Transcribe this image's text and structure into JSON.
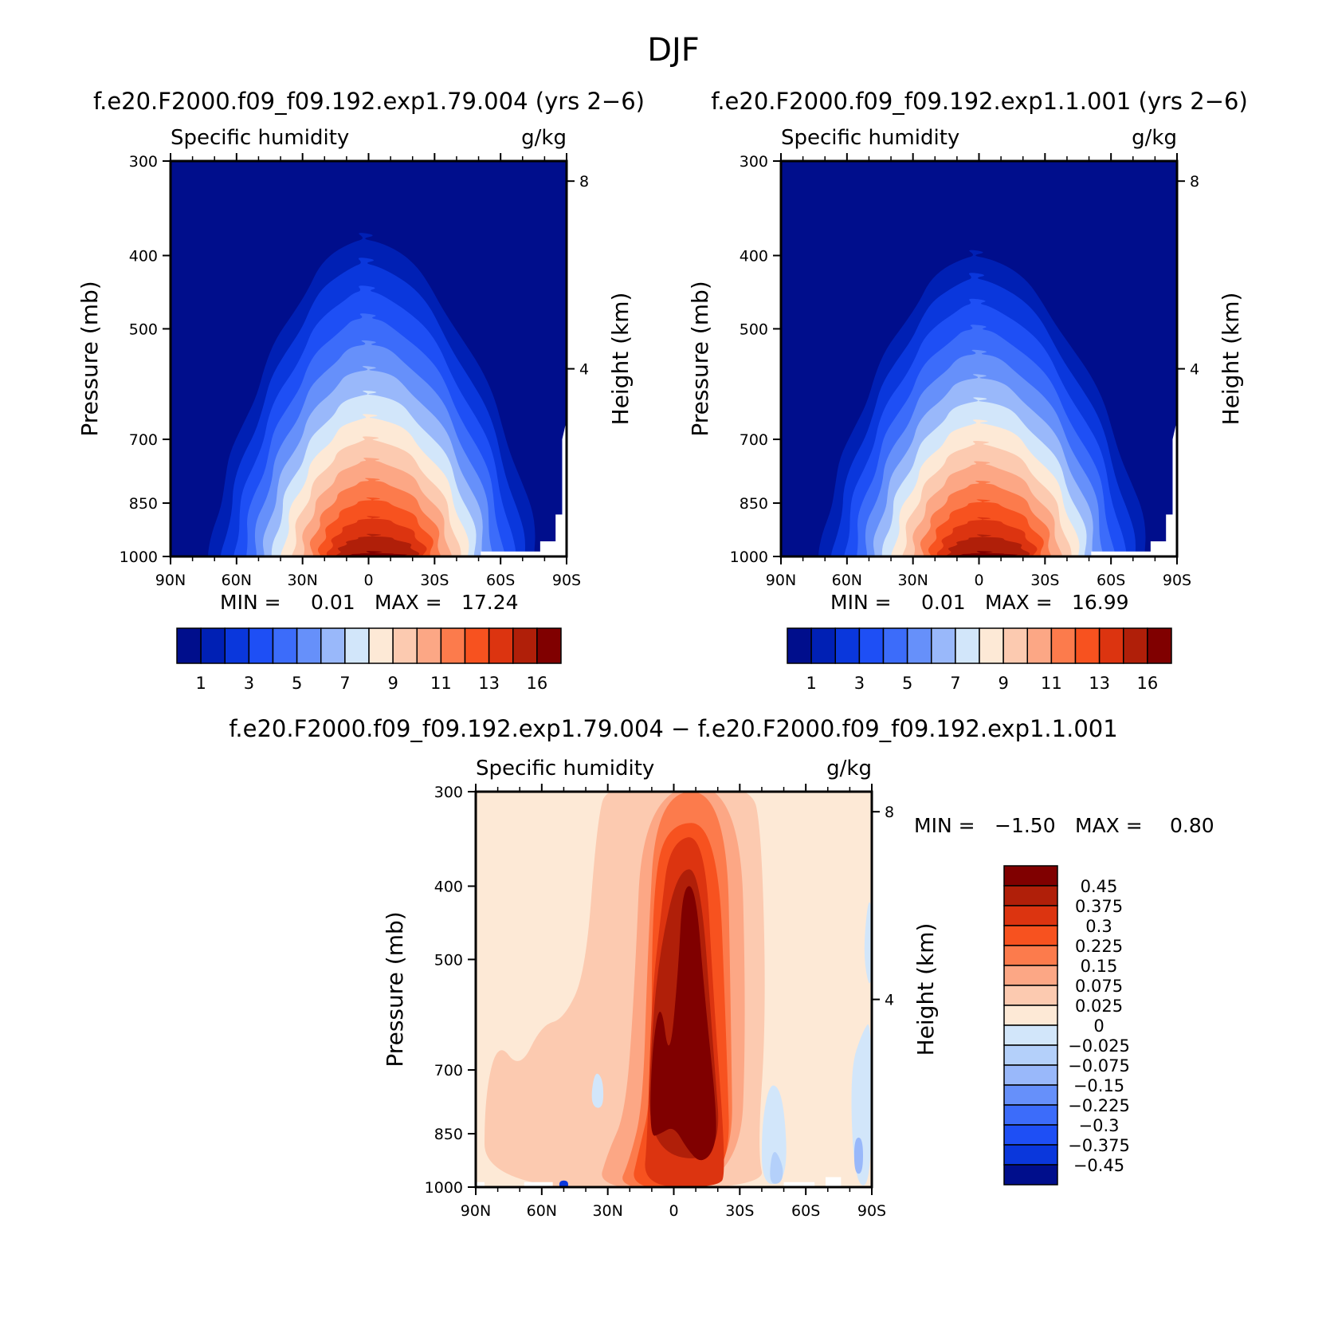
{
  "figure": {
    "title": "DJF"
  },
  "chart_data": [
    {
      "type": "heatmap",
      "panel": "top-left",
      "title": "f.e20.F2000.f09_f09.192.exp1.79.004 (yrs 2−6)",
      "left_subtitle": "Specific humidity",
      "right_subtitle": "g/kg",
      "xlabel": "",
      "ylabel": "Pressure (mb)",
      "y2label": "Height (km)",
      "x_ticks": [
        "90N",
        "60N",
        "30N",
        "0",
        "30S",
        "60S",
        "90S"
      ],
      "x_values": [
        90,
        60,
        30,
        0,
        -30,
        -60,
        -90
      ],
      "y_ticks": [
        "300",
        "400",
        "500",
        "700",
        "850",
        "1000"
      ],
      "y_values": [
        300,
        400,
        500,
        700,
        850,
        1000
      ],
      "y_scale": "log",
      "y2_ticks": [
        "8",
        "4"
      ],
      "y2_values": [
        8,
        4
      ],
      "min_label": "MIN =",
      "min_value": "0.01",
      "max_label": "MAX =",
      "max_value": "17.24",
      "peak_level_mb": 380,
      "colorbar": {
        "orientation": "horizontal",
        "tick_labels": [
          "1",
          "3",
          "5",
          "7",
          "9",
          "11",
          "13",
          "16"
        ],
        "colors": [
          "#000e8c",
          "#0020b4",
          "#0a37dc",
          "#1e4ff5",
          "#3c6cfa",
          "#6690fa",
          "#99b8fa",
          "#d2e6fa",
          "#fde9d6",
          "#fccab0",
          "#fca785",
          "#fc7b4c",
          "#f7521f",
          "#dc3410",
          "#b01f09",
          "#800000"
        ]
      }
    },
    {
      "type": "heatmap",
      "panel": "top-right",
      "title": "f.e20.F2000.f09_f09.192.exp1.1.001 (yrs 2−6)",
      "left_subtitle": "Specific humidity",
      "right_subtitle": "g/kg",
      "xlabel": "",
      "ylabel": "Pressure (mb)",
      "y2label": "Height (km)",
      "x_ticks": [
        "90N",
        "60N",
        "30N",
        "0",
        "30S",
        "60S",
        "90S"
      ],
      "x_values": [
        90,
        60,
        30,
        0,
        -30,
        -60,
        -90
      ],
      "y_ticks": [
        "300",
        "400",
        "500",
        "700",
        "850",
        "1000"
      ],
      "y_values": [
        300,
        400,
        500,
        700,
        850,
        1000
      ],
      "y_scale": "log",
      "y2_ticks": [
        "8",
        "4"
      ],
      "y2_values": [
        8,
        4
      ],
      "min_label": "MIN =",
      "min_value": "0.01",
      "max_label": "MAX =",
      "max_value": "16.99",
      "peak_level_mb": 400,
      "colorbar": {
        "orientation": "horizontal",
        "tick_labels": [
          "1",
          "3",
          "5",
          "7",
          "9",
          "11",
          "13",
          "16"
        ],
        "colors": [
          "#000e8c",
          "#0020b4",
          "#0a37dc",
          "#1e4ff5",
          "#3c6cfa",
          "#6690fa",
          "#99b8fa",
          "#d2e6fa",
          "#fde9d6",
          "#fccab0",
          "#fca785",
          "#fc7b4c",
          "#f7521f",
          "#dc3410",
          "#b01f09",
          "#800000"
        ]
      }
    },
    {
      "type": "heatmap",
      "panel": "bottom",
      "title": "f.e20.F2000.f09_f09.192.exp1.79.004 − f.e20.F2000.f09_f09.192.exp1.1.001",
      "left_subtitle": "Specific humidity",
      "right_subtitle": "g/kg",
      "xlabel": "",
      "ylabel": "Pressure (mb)",
      "y2label": "Height (km)",
      "x_ticks": [
        "90N",
        "60N",
        "30N",
        "0",
        "30S",
        "60S",
        "90S"
      ],
      "x_values": [
        90,
        60,
        30,
        0,
        -30,
        -60,
        -90
      ],
      "y_ticks": [
        "300",
        "400",
        "500",
        "700",
        "850",
        "1000"
      ],
      "y_values": [
        300,
        400,
        500,
        700,
        850,
        1000
      ],
      "y_scale": "log",
      "y2_ticks": [
        "8",
        "4"
      ],
      "y2_values": [
        8,
        4
      ],
      "min_label": "MIN =",
      "min_value": "−1.50",
      "max_label": "MAX =",
      "max_value": "0.80",
      "colorbar": {
        "orientation": "vertical",
        "tick_labels": [
          "0.45",
          "0.375",
          "0.3",
          "0.225",
          "0.15",
          "0.075",
          "0.025",
          "0",
          "−0.025",
          "−0.075",
          "−0.15",
          "−0.225",
          "−0.3",
          "−0.375",
          "−0.45"
        ],
        "colors": [
          "#800000",
          "#b01f09",
          "#dc3410",
          "#f7521f",
          "#fc7b4c",
          "#fca785",
          "#fccab0",
          "#fde9d6",
          "#d2e6fa",
          "#b4d0fa",
          "#99b8fa",
          "#6690fa",
          "#3c6cfa",
          "#1e4ff5",
          "#0a37dc",
          "#000e8c"
        ]
      }
    }
  ]
}
